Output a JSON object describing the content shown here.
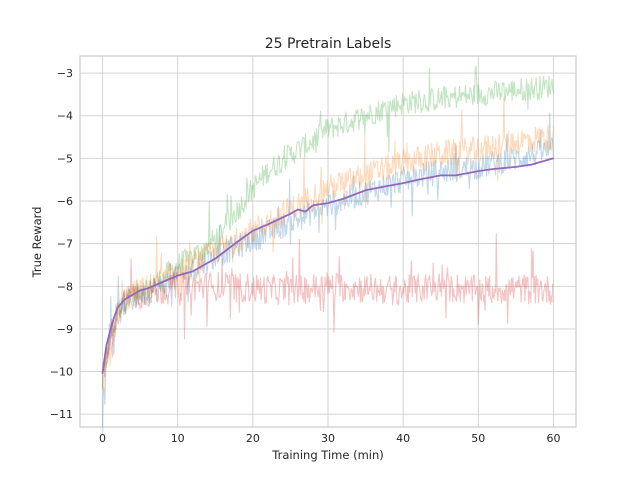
{
  "chart_data": {
    "type": "line",
    "title": "25 Pretrain Labels",
    "xlabel": "Training Time (min)",
    "ylabel": "True Reward",
    "xlim": [
      -3,
      63
    ],
    "ylim": [
      -11.3,
      -2.6
    ],
    "x_ticks": [
      0,
      10,
      20,
      30,
      40,
      50,
      60
    ],
    "y_ticks": [
      -11,
      -10,
      -9,
      -8,
      -7,
      -6,
      -5,
      -4,
      -3
    ],
    "x_tick_labels": [
      "0",
      "10",
      "20",
      "30",
      "40",
      "50",
      "60"
    ],
    "y_tick_labels": [
      "−11",
      "−10",
      "−9",
      "−8",
      "−7",
      "−6",
      "−5",
      "−4",
      "−3"
    ],
    "grid": true,
    "legend": "none",
    "series": [
      {
        "color": "#2ca02c",
        "opacity": 0.28,
        "style": "noisy-band",
        "noise": 0.28,
        "x": [
          0,
          1,
          2,
          3,
          5,
          8,
          10,
          12,
          15,
          18,
          20,
          22,
          25,
          28,
          30,
          32,
          35,
          38,
          40,
          45,
          50,
          55,
          60
        ],
        "y": [
          -10.3,
          -9.2,
          -8.6,
          -8.3,
          -8.1,
          -7.8,
          -7.5,
          -7.3,
          -6.9,
          -6.2,
          -5.7,
          -5.3,
          -4.9,
          -4.6,
          -4.3,
          -4.2,
          -4.0,
          -3.8,
          -3.7,
          -3.6,
          -3.5,
          -3.4,
          -3.3
        ]
      },
      {
        "color": "#1f77b4",
        "opacity": 0.28,
        "style": "noisy-band",
        "noise": 0.3,
        "x": [
          0,
          1,
          2,
          3,
          5,
          8,
          10,
          15,
          20,
          25,
          30,
          35,
          40,
          45,
          50,
          55,
          60
        ],
        "y": [
          -10.4,
          -9.3,
          -8.7,
          -8.4,
          -8.2,
          -8.0,
          -7.8,
          -7.3,
          -6.9,
          -6.5,
          -6.1,
          -5.8,
          -5.5,
          -5.3,
          -5.2,
          -5.0,
          -4.8
        ]
      },
      {
        "color": "#ff7f0e",
        "opacity": 0.28,
        "style": "noisy-band",
        "noise": 0.32,
        "x": [
          0,
          1,
          2,
          3,
          5,
          8,
          10,
          15,
          20,
          25,
          30,
          35,
          40,
          45,
          50,
          55,
          60
        ],
        "y": [
          -10.5,
          -9.4,
          -8.7,
          -8.3,
          -8.1,
          -7.9,
          -7.7,
          -7.2,
          -6.7,
          -6.2,
          -5.7,
          -5.4,
          -5.1,
          -4.9,
          -4.8,
          -4.6,
          -4.5
        ]
      },
      {
        "color": "#d62728",
        "opacity": 0.28,
        "style": "noisy-band",
        "noise": 0.35,
        "x": [
          0,
          1,
          2,
          3,
          5,
          8,
          10,
          15,
          20,
          25,
          30,
          35,
          40,
          45,
          50,
          55,
          60
        ],
        "y": [
          -10.2,
          -9.2,
          -8.6,
          -8.3,
          -8.2,
          -8.1,
          -8.0,
          -8.0,
          -8.05,
          -8.1,
          -8.0,
          -8.05,
          -8.1,
          -8.0,
          -8.1,
          -8.05,
          -8.1
        ]
      },
      {
        "color": "#9467bd",
        "opacity": 1.0,
        "style": "mean-line",
        "x": [
          0,
          0.5,
          1,
          1.5,
          2,
          3,
          4,
          5,
          6,
          8,
          10,
          12,
          15,
          18,
          20,
          22,
          25,
          26,
          27,
          28,
          30,
          32,
          35,
          37,
          40,
          42,
          45,
          47,
          50,
          52,
          55,
          57,
          60
        ],
        "y": [
          -10.05,
          -9.4,
          -9.05,
          -8.75,
          -8.5,
          -8.3,
          -8.2,
          -8.1,
          -8.05,
          -7.9,
          -7.75,
          -7.65,
          -7.35,
          -6.95,
          -6.7,
          -6.55,
          -6.3,
          -6.2,
          -6.25,
          -6.1,
          -6.05,
          -5.95,
          -5.75,
          -5.68,
          -5.58,
          -5.5,
          -5.4,
          -5.4,
          -5.3,
          -5.25,
          -5.2,
          -5.15,
          -5.0
        ]
      }
    ]
  }
}
